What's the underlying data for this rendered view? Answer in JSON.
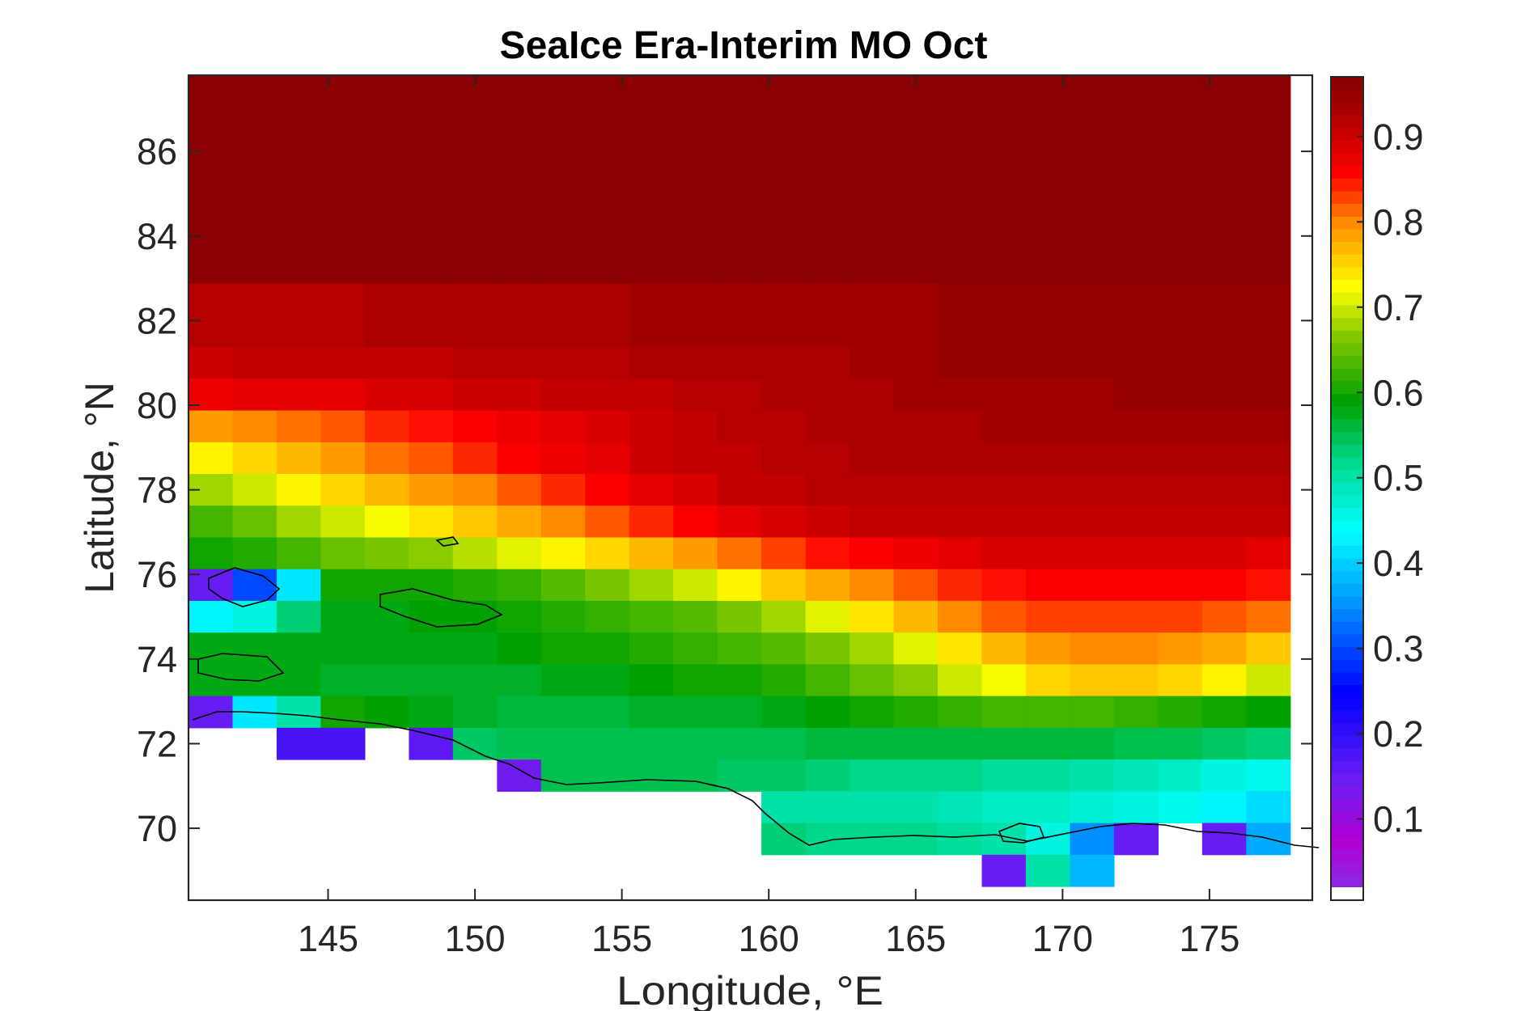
{
  "chart_data": {
    "type": "heatmap",
    "title": "SeaIce Era-Interim MO Oct",
    "xlabel": "Longitude, °E",
    "ylabel": "Latitude, °N",
    "xlim": [
      140.25,
      178.5
    ],
    "ylim": [
      68.3,
      87.8
    ],
    "x_ticks": [
      145,
      150,
      155,
      160,
      165,
      170,
      175
    ],
    "y_ticks": [
      70,
      72,
      74,
      76,
      78,
      80,
      82,
      84,
      86
    ],
    "colorbar": {
      "range": [
        0.02,
        0.97
      ],
      "ticks": [
        0.1,
        0.2,
        0.3,
        0.4,
        0.5,
        0.6,
        0.7,
        0.8,
        0.9
      ],
      "colormap": "rainbow (purple-blue-cyan-green-yellow-red-darkred)",
      "nan_color": "#ffffff"
    },
    "grid": false,
    "longitudes": [
      141,
      142.5,
      144,
      145.5,
      147,
      148.5,
      150,
      151.5,
      153,
      154.5,
      156,
      157.5,
      159,
      160.5,
      162,
      163.5,
      165,
      166.5,
      168,
      169.5,
      171,
      172.5,
      174,
      175.5,
      177
    ],
    "latitude_bands": [
      {
        "lat": 87.75,
        "values": [
          0.96,
          0.96,
          0.96,
          0.96,
          0.96,
          0.96,
          0.96,
          0.96,
          0.96,
          0.96,
          0.96,
          0.96,
          0.96,
          0.96,
          0.96,
          0.96,
          0.96,
          0.96,
          0.96,
          0.96,
          0.96,
          0.96,
          0.96,
          0.96,
          0.96
        ]
      },
      {
        "lat": 87.0,
        "values": [
          0.96,
          0.96,
          0.96,
          0.96,
          0.96,
          0.96,
          0.96,
          0.96,
          0.96,
          0.96,
          0.96,
          0.96,
          0.96,
          0.96,
          0.96,
          0.96,
          0.96,
          0.96,
          0.96,
          0.96,
          0.96,
          0.96,
          0.96,
          0.96,
          0.96
        ]
      },
      {
        "lat": 86.25,
        "values": [
          0.96,
          0.96,
          0.96,
          0.96,
          0.96,
          0.96,
          0.96,
          0.96,
          0.96,
          0.96,
          0.96,
          0.96,
          0.96,
          0.96,
          0.96,
          0.96,
          0.96,
          0.96,
          0.96,
          0.96,
          0.96,
          0.96,
          0.96,
          0.96,
          0.96
        ]
      },
      {
        "lat": 85.5,
        "values": [
          0.96,
          0.96,
          0.96,
          0.96,
          0.96,
          0.96,
          0.96,
          0.96,
          0.96,
          0.96,
          0.96,
          0.96,
          0.96,
          0.96,
          0.96,
          0.96,
          0.96,
          0.96,
          0.96,
          0.96,
          0.96,
          0.96,
          0.96,
          0.96,
          0.96
        ]
      },
      {
        "lat": 84.75,
        "values": [
          0.96,
          0.96,
          0.96,
          0.96,
          0.96,
          0.96,
          0.96,
          0.96,
          0.96,
          0.96,
          0.96,
          0.96,
          0.96,
          0.96,
          0.96,
          0.96,
          0.96,
          0.96,
          0.96,
          0.96,
          0.96,
          0.96,
          0.96,
          0.96,
          0.96
        ]
      },
      {
        "lat": 84.0,
        "values": [
          0.96,
          0.96,
          0.96,
          0.96,
          0.96,
          0.96,
          0.96,
          0.96,
          0.96,
          0.96,
          0.96,
          0.96,
          0.96,
          0.96,
          0.96,
          0.96,
          0.96,
          0.96,
          0.96,
          0.96,
          0.96,
          0.96,
          0.96,
          0.96,
          0.96
        ]
      },
      {
        "lat": 83.25,
        "values": [
          0.96,
          0.96,
          0.96,
          0.96,
          0.96,
          0.96,
          0.96,
          0.96,
          0.96,
          0.96,
          0.96,
          0.96,
          0.96,
          0.96,
          0.96,
          0.96,
          0.96,
          0.96,
          0.96,
          0.96,
          0.96,
          0.96,
          0.96,
          0.96,
          0.96
        ]
      },
      {
        "lat": 82.5,
        "values": [
          0.92,
          0.92,
          0.92,
          0.92,
          0.93,
          0.93,
          0.93,
          0.93,
          0.93,
          0.93,
          0.94,
          0.94,
          0.94,
          0.94,
          0.94,
          0.94,
          0.94,
          0.95,
          0.95,
          0.95,
          0.95,
          0.95,
          0.95,
          0.95,
          0.95
        ]
      },
      {
        "lat": 81.75,
        "values": [
          0.92,
          0.92,
          0.92,
          0.92,
          0.93,
          0.93,
          0.93,
          0.93,
          0.93,
          0.93,
          0.94,
          0.94,
          0.94,
          0.94,
          0.94,
          0.94,
          0.94,
          0.95,
          0.95,
          0.95,
          0.95,
          0.95,
          0.95,
          0.95,
          0.95
        ]
      },
      {
        "lat": 81.0,
        "values": [
          0.9,
          0.91,
          0.91,
          0.91,
          0.91,
          0.91,
          0.92,
          0.92,
          0.92,
          0.92,
          0.93,
          0.93,
          0.93,
          0.93,
          0.93,
          0.94,
          0.94,
          0.95,
          0.95,
          0.95,
          0.95,
          0.95,
          0.95,
          0.95,
          0.95
        ]
      },
      {
        "lat": 80.25,
        "values": [
          0.87,
          0.88,
          0.88,
          0.88,
          0.89,
          0.89,
          0.9,
          0.9,
          0.91,
          0.91,
          0.91,
          0.92,
          0.92,
          0.93,
          0.93,
          0.93,
          0.94,
          0.94,
          0.94,
          0.94,
          0.94,
          0.95,
          0.95,
          0.95,
          0.95
        ]
      },
      {
        "lat": 79.5,
        "values": [
          0.79,
          0.8,
          0.81,
          0.82,
          0.84,
          0.85,
          0.86,
          0.87,
          0.88,
          0.89,
          0.9,
          0.91,
          0.92,
          0.92,
          0.93,
          0.93,
          0.93,
          0.93,
          0.94,
          0.94,
          0.94,
          0.94,
          0.94,
          0.94,
          0.94
        ]
      },
      {
        "lat": 78.75,
        "values": [
          0.73,
          0.75,
          0.77,
          0.79,
          0.81,
          0.82,
          0.84,
          0.86,
          0.87,
          0.88,
          0.9,
          0.91,
          0.91,
          0.92,
          0.92,
          0.93,
          0.93,
          0.93,
          0.93,
          0.93,
          0.93,
          0.93,
          0.93,
          0.93,
          0.93
        ]
      },
      {
        "lat": 78.0,
        "values": [
          0.68,
          0.7,
          0.73,
          0.75,
          0.77,
          0.79,
          0.8,
          0.82,
          0.84,
          0.86,
          0.88,
          0.89,
          0.91,
          0.91,
          0.92,
          0.92,
          0.92,
          0.92,
          0.92,
          0.92,
          0.92,
          0.92,
          0.92,
          0.92,
          0.92
        ]
      },
      {
        "lat": 77.25,
        "values": [
          0.63,
          0.65,
          0.68,
          0.7,
          0.72,
          0.74,
          0.76,
          0.78,
          0.8,
          0.82,
          0.84,
          0.86,
          0.88,
          0.89,
          0.9,
          0.91,
          0.91,
          0.91,
          0.91,
          0.91,
          0.91,
          0.91,
          0.91,
          0.91,
          0.91
        ]
      },
      {
        "lat": 76.5,
        "values": [
          0.6,
          0.61,
          0.63,
          0.65,
          0.66,
          0.67,
          0.69,
          0.71,
          0.73,
          0.75,
          0.77,
          0.79,
          0.81,
          0.83,
          0.85,
          0.86,
          0.87,
          0.88,
          0.89,
          0.89,
          0.89,
          0.89,
          0.89,
          0.89,
          0.88
        ]
      },
      {
        "lat": 75.75,
        "values": [
          0.15,
          0.3,
          0.42,
          0.6,
          0.6,
          0.6,
          0.61,
          0.62,
          0.64,
          0.66,
          0.68,
          0.7,
          0.73,
          0.76,
          0.78,
          0.8,
          0.82,
          0.84,
          0.85,
          0.86,
          0.86,
          0.86,
          0.86,
          0.86,
          0.85
        ]
      },
      {
        "lat": 75.0,
        "values": [
          0.43,
          0.46,
          0.53,
          0.58,
          0.58,
          0.59,
          0.59,
          0.6,
          0.61,
          0.62,
          0.63,
          0.64,
          0.66,
          0.68,
          0.71,
          0.74,
          0.77,
          0.8,
          0.82,
          0.83,
          0.83,
          0.83,
          0.83,
          0.82,
          0.81
        ]
      },
      {
        "lat": 74.25,
        "values": [
          0.58,
          0.58,
          0.58,
          0.58,
          0.58,
          0.58,
          0.58,
          0.59,
          0.6,
          0.6,
          0.61,
          0.62,
          0.63,
          0.64,
          0.66,
          0.68,
          0.71,
          0.74,
          0.77,
          0.79,
          0.8,
          0.8,
          0.79,
          0.78,
          0.76
        ]
      },
      {
        "lat": 73.5,
        "values": [
          0.58,
          0.58,
          0.58,
          0.57,
          0.57,
          0.57,
          0.57,
          0.57,
          0.58,
          0.58,
          0.59,
          0.6,
          0.6,
          0.61,
          0.63,
          0.65,
          0.67,
          0.7,
          0.72,
          0.75,
          0.76,
          0.76,
          0.75,
          0.73,
          0.7
        ]
      },
      {
        "lat": 72.75,
        "values": [
          0.15,
          0.42,
          0.5,
          0.6,
          0.59,
          0.58,
          0.57,
          0.56,
          0.56,
          0.56,
          0.57,
          0.57,
          0.57,
          0.58,
          0.59,
          0.6,
          0.61,
          0.62,
          0.63,
          0.63,
          0.63,
          0.62,
          0.61,
          0.6,
          0.59
        ]
      },
      {
        "lat": 72.0,
        "values": [
          null,
          null,
          0.18,
          0.18,
          null,
          0.16,
          0.54,
          0.55,
          0.55,
          0.55,
          0.55,
          0.55,
          0.55,
          0.55,
          0.56,
          0.56,
          0.56,
          0.56,
          0.56,
          0.56,
          0.56,
          0.55,
          0.55,
          0.54,
          0.53
        ]
      },
      {
        "lat": 71.25,
        "values": [
          null,
          null,
          null,
          null,
          null,
          null,
          null,
          0.14,
          0.55,
          0.55,
          0.55,
          0.55,
          0.54,
          0.54,
          0.53,
          0.52,
          0.52,
          0.52,
          0.51,
          0.51,
          0.5,
          0.49,
          0.48,
          0.46,
          0.45
        ]
      },
      {
        "lat": 70.5,
        "values": [
          null,
          null,
          null,
          null,
          null,
          null,
          null,
          null,
          null,
          null,
          null,
          null,
          null,
          0.5,
          0.5,
          0.5,
          0.5,
          0.49,
          0.48,
          0.48,
          0.47,
          0.46,
          0.45,
          0.43,
          0.41
        ]
      },
      {
        "lat": 69.75,
        "values": [
          null,
          null,
          null,
          null,
          null,
          null,
          null,
          null,
          null,
          null,
          null,
          null,
          null,
          0.53,
          0.52,
          0.52,
          0.52,
          0.51,
          0.5,
          0.46,
          0.35,
          0.15,
          null,
          0.15,
          0.37
        ]
      },
      {
        "lat": 69.0,
        "values": [
          null,
          null,
          null,
          null,
          null,
          null,
          null,
          null,
          null,
          null,
          null,
          null,
          null,
          null,
          null,
          null,
          null,
          null,
          0.15,
          0.5,
          0.38,
          null,
          null,
          null,
          null
        ]
      }
    ]
  }
}
